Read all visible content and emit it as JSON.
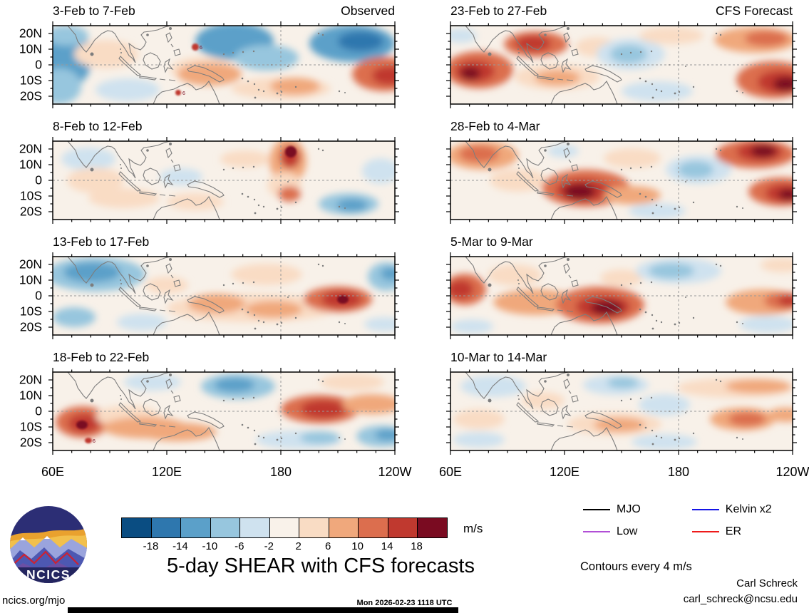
{
  "chart_data": {
    "type": "heatmap",
    "title": "5-day SHEAR with CFS forecasts",
    "units": "m/s",
    "contour_note": "Contours every 4 m/s",
    "columns": [
      "Observed",
      "CFS Forecast"
    ],
    "lat_ticks": [
      "20N",
      "10N",
      "0",
      "10S",
      "20S"
    ],
    "lon_ticks": [
      "60E",
      "120E",
      "180",
      "120W"
    ],
    "base_color": "#f8f1e9",
    "colorbar": {
      "tick_labels": [
        "-18",
        "-14",
        "-10",
        "-6",
        "-2",
        "2",
        "6",
        "10",
        "14",
        "18"
      ],
      "colors": [
        "#0a4d82",
        "#2e77ae",
        "#5ba0c9",
        "#97c6de",
        "#cfe2ef",
        "#f9f2ea",
        "#f9dcc4",
        "#f0a87c",
        "#dc6e4e",
        "#c0392f",
        "#7a0b21"
      ]
    },
    "legend": [
      {
        "label": "MJO",
        "color": "#000000"
      },
      {
        "label": "Low",
        "color": "#b14fd6"
      },
      {
        "label": "Kelvin x2",
        "color": "#1414e6"
      },
      {
        "label": "ER",
        "color": "#ee1a1a"
      }
    ],
    "panels": [
      {
        "title": "3-Feb to 7-Feb",
        "subtitle": "Observed",
        "blobs": [
          [
            15,
            45,
            40,
            45,
            2
          ],
          [
            10,
            85,
            30,
            25,
            3
          ],
          [
            20,
            14,
            30,
            14,
            3
          ],
          [
            75,
            40,
            45,
            20,
            6
          ],
          [
            105,
            90,
            45,
            16,
            4
          ],
          [
            255,
            22,
            55,
            26,
            2
          ],
          [
            300,
            45,
            45,
            18,
            3
          ],
          [
            210,
            62,
            45,
            18,
            6
          ],
          [
            220,
            68,
            45,
            16,
            7
          ],
          [
            320,
            88,
            70,
            15,
            6
          ],
          [
            340,
            85,
            35,
            12,
            7
          ],
          [
            420,
            25,
            60,
            26,
            2
          ],
          [
            432,
            22,
            32,
            14,
            1
          ],
          [
            465,
            68,
            45,
            24,
            8
          ],
          [
            472,
            70,
            24,
            13,
            9
          ],
          [
            200,
            30,
            5,
            5,
            9,
            "6"
          ],
          [
            176,
            94,
            4,
            4,
            9,
            "6"
          ]
        ]
      },
      {
        "title": "8-Feb to 12-Feb",
        "subtitle": "",
        "blobs": [
          [
            50,
            25,
            38,
            16,
            4
          ],
          [
            60,
            55,
            40,
            18,
            6
          ],
          [
            100,
            80,
            50,
            14,
            6
          ],
          [
            180,
            50,
            30,
            12,
            4
          ],
          [
            270,
            25,
            35,
            12,
            6
          ],
          [
            200,
            85,
            40,
            12,
            6
          ],
          [
            330,
            28,
            26,
            32,
            7
          ],
          [
            333,
            22,
            14,
            16,
            9
          ],
          [
            334,
            15,
            8,
            8,
            10
          ],
          [
            325,
            62,
            24,
            18,
            6
          ],
          [
            332,
            74,
            16,
            11,
            8
          ],
          [
            415,
            88,
            42,
            15,
            3
          ],
          [
            420,
            90,
            22,
            9,
            2
          ],
          [
            460,
            42,
            26,
            18,
            4
          ]
        ]
      },
      {
        "title": "13-Feb to 17-Feb",
        "subtitle": "",
        "blobs": [
          [
            60,
            25,
            70,
            24,
            3
          ],
          [
            55,
            22,
            40,
            14,
            2
          ],
          [
            30,
            85,
            30,
            14,
            3
          ],
          [
            125,
            92,
            35,
            12,
            4
          ],
          [
            160,
            40,
            30,
            12,
            6
          ],
          [
            280,
            72,
            120,
            20,
            6
          ],
          [
            230,
            66,
            40,
            14,
            7
          ],
          [
            310,
            74,
            40,
            12,
            7
          ],
          [
            300,
            25,
            50,
            15,
            6
          ],
          [
            400,
            60,
            48,
            18,
            8
          ],
          [
            405,
            60,
            28,
            12,
            9
          ],
          [
            407,
            60,
            8,
            6,
            10
          ],
          [
            468,
            28,
            26,
            20,
            3
          ],
          [
            474,
            24,
            14,
            9,
            2
          ],
          [
            465,
            95,
            28,
            10,
            4
          ]
        ]
      },
      {
        "title": "18-Feb to 22-Feb",
        "subtitle": "",
        "blobs": [
          [
            42,
            70,
            38,
            22,
            8
          ],
          [
            44,
            72,
            22,
            13,
            9
          ],
          [
            41,
            74,
            8,
            6,
            10
          ],
          [
            105,
            62,
            45,
            15,
            6
          ],
          [
            130,
            78,
            60,
            15,
            7
          ],
          [
            175,
            84,
            55,
            13,
            7
          ],
          [
            140,
            14,
            40,
            12,
            4
          ],
          [
            260,
            20,
            52,
            18,
            3
          ],
          [
            255,
            18,
            28,
            10,
            2
          ],
          [
            375,
            52,
            55,
            20,
            8
          ],
          [
            380,
            52,
            32,
            13,
            9
          ],
          [
            448,
            45,
            42,
            14,
            7
          ],
          [
            420,
            14,
            45,
            12,
            6
          ],
          [
            345,
            95,
            60,
            13,
            4
          ],
          [
            375,
            92,
            28,
            9,
            3
          ],
          [
            462,
            90,
            36,
            15,
            3
          ],
          [
            470,
            88,
            18,
            8,
            2
          ],
          [
            50,
            96,
            5,
            4,
            9,
            "6"
          ]
        ]
      },
      {
        "title": "23-Feb to 27-Feb",
        "subtitle": "CFS Forecast",
        "blobs": [
          [
            15,
            14,
            22,
            10,
            4
          ],
          [
            40,
            62,
            48,
            26,
            8
          ],
          [
            34,
            64,
            28,
            15,
            9
          ],
          [
            28,
            67,
            14,
            9,
            10
          ],
          [
            120,
            26,
            45,
            18,
            8
          ],
          [
            116,
            25,
            25,
            11,
            9
          ],
          [
            150,
            72,
            60,
            18,
            6
          ],
          [
            150,
            73,
            32,
            11,
            7
          ],
          [
            205,
            30,
            30,
            14,
            6
          ],
          [
            253,
            40,
            48,
            22,
            4
          ],
          [
            250,
            40,
            26,
            13,
            3
          ],
          [
            290,
            92,
            50,
            14,
            4
          ],
          [
            310,
            14,
            45,
            12,
            6
          ],
          [
            428,
            20,
            58,
            18,
            7
          ],
          [
            443,
            18,
            30,
            11,
            8
          ],
          [
            453,
            76,
            52,
            26,
            8
          ],
          [
            463,
            79,
            32,
            16,
            9
          ],
          [
            471,
            82,
            18,
            10,
            10
          ]
        ]
      },
      {
        "title": "28-Feb to 4-Mar",
        "subtitle": "",
        "blobs": [
          [
            45,
            20,
            50,
            20,
            7
          ],
          [
            40,
            18,
            28,
            12,
            8
          ],
          [
            95,
            55,
            40,
            16,
            6
          ],
          [
            190,
            66,
            62,
            26,
            8
          ],
          [
            186,
            69,
            38,
            16,
            9
          ],
          [
            181,
            71,
            22,
            11,
            10
          ],
          [
            255,
            76,
            40,
            13,
            7
          ],
          [
            255,
            24,
            40,
            14,
            6
          ],
          [
            158,
            14,
            22,
            9,
            4
          ],
          [
            348,
            40,
            46,
            20,
            4
          ],
          [
            344,
            40,
            25,
            12,
            3
          ],
          [
            428,
            18,
            56,
            20,
            8
          ],
          [
            434,
            15,
            32,
            13,
            9
          ],
          [
            439,
            14,
            18,
            9,
            10
          ],
          [
            464,
            71,
            46,
            20,
            8
          ],
          [
            470,
            73,
            28,
            13,
            9
          ],
          [
            474,
            75,
            14,
            8,
            10
          ],
          [
            290,
            98,
            40,
            11,
            4
          ]
        ]
      },
      {
        "title": "5-Mar to 9-Mar",
        "subtitle": "",
        "blobs": [
          [
            20,
            46,
            30,
            22,
            8
          ],
          [
            14,
            46,
            18,
            13,
            9
          ],
          [
            90,
            26,
            38,
            15,
            6
          ],
          [
            120,
            64,
            60,
            18,
            7
          ],
          [
            210,
            68,
            62,
            26,
            8
          ],
          [
            214,
            70,
            38,
            16,
            9
          ],
          [
            219,
            72,
            22,
            10,
            10
          ],
          [
            240,
            30,
            30,
            12,
            6
          ],
          [
            320,
            20,
            60,
            18,
            4
          ],
          [
            310,
            20,
            32,
            11,
            3
          ],
          [
            438,
            64,
            52,
            18,
            7
          ],
          [
            468,
            62,
            28,
            12,
            8
          ],
          [
            474,
            62,
            14,
            8,
            9
          ],
          [
            445,
            95,
            40,
            12,
            4
          ],
          [
            30,
            98,
            30,
            10,
            4
          ],
          [
            465,
            12,
            30,
            10,
            6
          ]
        ]
      },
      {
        "title": "10-Mar to 14-Mar",
        "subtitle": "",
        "blobs": [
          [
            60,
            20,
            46,
            15,
            4
          ],
          [
            40,
            66,
            36,
            14,
            6
          ],
          [
            40,
            95,
            36,
            11,
            4
          ],
          [
            130,
            40,
            30,
            12,
            6
          ],
          [
            230,
            73,
            66,
            16,
            6
          ],
          [
            237,
            74,
            36,
            10,
            7
          ],
          [
            232,
            18,
            46,
            14,
            4
          ],
          [
            242,
            15,
            22,
            8,
            3
          ],
          [
            300,
            46,
            36,
            15,
            4
          ],
          [
            300,
            98,
            46,
            11,
            4
          ],
          [
            400,
            22,
            82,
            14,
            6
          ],
          [
            432,
            20,
            46,
            10,
            7
          ],
          [
            410,
            66,
            46,
            16,
            7
          ],
          [
            416,
            66,
            26,
            10,
            8
          ],
          [
            470,
            60,
            25,
            10,
            7
          ]
        ]
      }
    ]
  },
  "footer": {
    "site": "ncics.org/mjo",
    "timestamp": "Mon 2026-02-23 1118 UTC",
    "credit_name": "Carl Schreck",
    "credit_email": "carl_schreck@ncsu.edu",
    "logo_text": "NCICS"
  }
}
